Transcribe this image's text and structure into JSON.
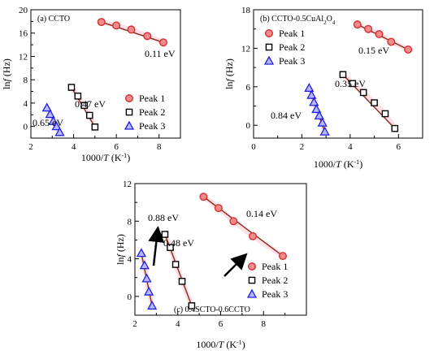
{
  "chart_data": [
    {
      "type": "scatter",
      "panel_title": "(a) CCTO",
      "xlabel_pre": "1000/",
      "xlabel_var": "T",
      "xlabel_post": " (K",
      "xlabel_sup": "-1",
      "xlabel_end": ")",
      "ylabel_pre": "ln",
      "ylabel_var": "f",
      "ylabel_post": " (Hz)",
      "xlim": [
        2,
        9
      ],
      "ylim": [
        -2,
        20
      ],
      "xticks": [
        "2",
        "4",
        "6",
        "8"
      ],
      "yticks": [
        "0",
        "4",
        "8",
        "12",
        "16",
        "20"
      ],
      "legend_position": "lower-right",
      "series": [
        {
          "name": "Peak 1",
          "marker": "circle",
          "color": "#d62f2f",
          "fill": "#f28b8b",
          "x": [
            5.3,
            6.0,
            6.7,
            7.45,
            8.2
          ],
          "y": [
            17.9,
            17.3,
            16.6,
            15.5,
            14.4
          ],
          "annotation": "0.11 eV"
        },
        {
          "name": "Peak 2",
          "marker": "square",
          "color": "#000000",
          "fill": "#ffffff",
          "x": [
            3.9,
            4.2,
            4.5,
            4.75,
            5.0
          ],
          "y": [
            6.7,
            5.2,
            3.6,
            1.9,
            -0.1
          ],
          "annotation": "0.47 eV"
        },
        {
          "name": "Peak 3",
          "marker": "triangle",
          "color": "#2222dd",
          "fill": "#b8b8ff",
          "x": [
            2.75,
            2.9,
            3.05,
            3.2,
            3.35
          ],
          "y": [
            3.2,
            2.1,
            0.9,
            0.0,
            -1.0
          ],
          "annotation": "0.65 eV"
        }
      ]
    },
    {
      "type": "scatter",
      "panel_title_pre": "(b) CCTO-0.5CuAl",
      "panel_title_sub1": "2",
      "panel_title_mid": "O",
      "panel_title_sub2": "4",
      "xlabel_pre": "1000/",
      "xlabel_var": "T",
      "xlabel_post": " (K",
      "xlabel_sup": "-1",
      "xlabel_end": ")",
      "ylabel_pre": "ln",
      "ylabel_var": "f",
      "ylabel_post": " (Hz)",
      "xlim": [
        0,
        7
      ],
      "ylim": [
        -2,
        18
      ],
      "xticks": [
        "0",
        "2",
        "4",
        "6"
      ],
      "yticks": [
        "0",
        "6",
        "12",
        "18"
      ],
      "legend_position": "upper-left",
      "series": [
        {
          "name": "Peak 1",
          "marker": "circle",
          "color": "#d62f2f",
          "fill": "#f28b8b",
          "x": [
            4.3,
            4.75,
            5.2,
            5.7,
            6.4
          ],
          "y": [
            15.7,
            15.0,
            14.2,
            13.0,
            11.8
          ],
          "annotation": "0.15 eV"
        },
        {
          "name": "Peak 2",
          "marker": "square",
          "color": "#000000",
          "fill": "#ffffff",
          "x": [
            3.7,
            4.1,
            4.55,
            5.0,
            5.45,
            5.85
          ],
          "y": [
            7.9,
            6.5,
            5.1,
            3.5,
            1.8,
            -0.5
          ],
          "annotation": "0.35 eV"
        },
        {
          "name": "Peak 3",
          "marker": "triangle",
          "color": "#2222dd",
          "fill": "#b8b8ff",
          "x": [
            2.3,
            2.4,
            2.5,
            2.6,
            2.72,
            2.85,
            2.95
          ],
          "y": [
            5.8,
            4.7,
            3.6,
            2.5,
            1.5,
            0.4,
            -1.0
          ],
          "annotation": "0.84 eV"
        }
      ]
    },
    {
      "type": "scatter",
      "panel_title": "(c) 0.4SCTO-0.6CCTO",
      "xlabel_pre": "1000/",
      "xlabel_var": "T",
      "xlabel_post": " (K",
      "xlabel_sup": "-1",
      "xlabel_end": ")",
      "ylabel_pre": "ln",
      "ylabel_var": "f",
      "ylabel_post": " (Hz)",
      "xlim": [
        2,
        10
      ],
      "ylim": [
        -2,
        12
      ],
      "xticks": [
        "2",
        "4",
        "6",
        "8"
      ],
      "yticks": [
        "0",
        "4",
        "8",
        "12"
      ],
      "legend_position": "lower-right",
      "series": [
        {
          "name": "Peak 1",
          "marker": "circle",
          "color": "#d62f2f",
          "fill": "#f28b8b",
          "x": [
            5.2,
            5.9,
            6.6,
            7.5,
            8.9
          ],
          "y": [
            10.6,
            9.4,
            8.0,
            6.4,
            4.3
          ],
          "annotation": "0.14 eV"
        },
        {
          "name": "Peak 2",
          "marker": "square",
          "color": "#000000",
          "fill": "#ffffff",
          "x": [
            3.4,
            3.65,
            3.9,
            4.2,
            4.65
          ],
          "y": [
            6.6,
            5.2,
            3.4,
            1.6,
            -1.0
          ],
          "annotation": "0.48 eV"
        },
        {
          "name": "Peak 3",
          "marker": "triangle",
          "color": "#2222dd",
          "fill": "#b8b8ff",
          "x": [
            2.3,
            2.45,
            2.55,
            2.65,
            2.8
          ],
          "y": [
            4.6,
            3.3,
            1.9,
            0.5,
            -1.0
          ],
          "annotation": "0.88 eV"
        }
      ]
    }
  ]
}
